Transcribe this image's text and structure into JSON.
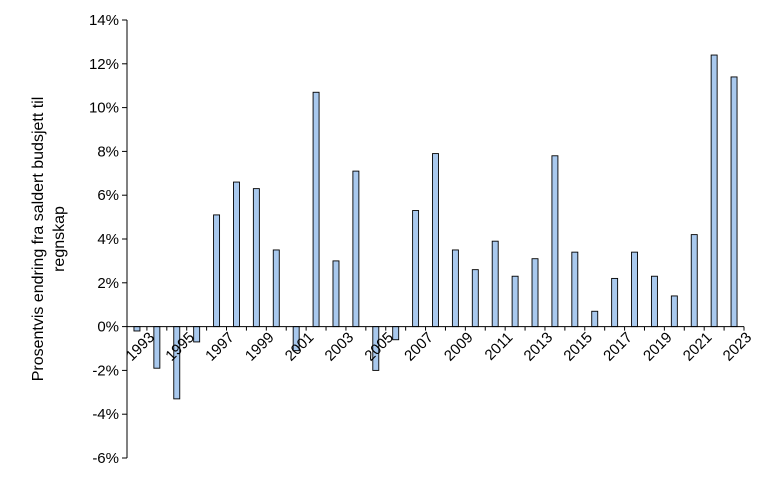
{
  "chart_data": {
    "type": "bar",
    "title": "",
    "xlabel": "",
    "ylabel_lines": [
      "Prosentvis endring fra saldert budsjett til",
      "regnskap"
    ],
    "ylim": [
      -6,
      14
    ],
    "yticks": [
      -6,
      -4,
      -2,
      0,
      2,
      4,
      6,
      8,
      10,
      12,
      14
    ],
    "ytick_labels": [
      "-6%",
      "-4%",
      "-2%",
      "0%",
      "2%",
      "4%",
      "6%",
      "8%",
      "10%",
      "12%",
      "14%"
    ],
    "grid": false,
    "legend": "none",
    "bar_color": "#a9c9ee",
    "bar_edge_color": "#000000",
    "categories": [
      "1993",
      "1994",
      "1995",
      "1996",
      "1997",
      "1998",
      "1999",
      "2000",
      "2001",
      "2002",
      "2003",
      "2004",
      "2005",
      "2006",
      "2007",
      "2008",
      "2009",
      "2010",
      "2011",
      "2012",
      "2013",
      "2014",
      "2015",
      "2016",
      "2017",
      "2018",
      "2019",
      "2020",
      "2021",
      "2022",
      "2023"
    ],
    "x_tick_labels": [
      "1993",
      "1995",
      "1997",
      "1999",
      "2001",
      "2003",
      "2005",
      "2007",
      "2009",
      "2011",
      "2013",
      "2015",
      "2017",
      "2019",
      "2021",
      "2023"
    ],
    "values": [
      -0.2,
      -1.9,
      -3.3,
      -0.7,
      5.1,
      6.6,
      6.3,
      3.5,
      -1.1,
      10.7,
      3.0,
      7.1,
      -2.0,
      -0.6,
      5.3,
      7.9,
      3.5,
      2.6,
      3.9,
      2.3,
      3.1,
      7.8,
      3.4,
      0.7,
      2.2,
      3.4,
      2.3,
      1.4,
      4.2,
      12.4,
      11.4
    ]
  }
}
